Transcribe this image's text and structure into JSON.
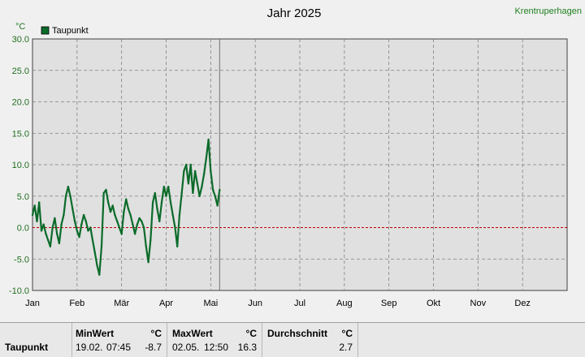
{
  "title": "Jahr 2025",
  "station": "Krentruperhagen",
  "colors": {
    "series": "#0b6b2a",
    "zero_line": "#c00000",
    "grid": "#808080",
    "station": "#208020"
  },
  "chart_data": {
    "type": "line",
    "title": "Jahr 2025",
    "ylabel": "°C",
    "ylim": [
      -10,
      30
    ],
    "yticks": [
      "30.0",
      "25.0",
      "20.0",
      "15.0",
      "10.0",
      "5.0",
      "0.0",
      "-5.0",
      "-10.0"
    ],
    "xlim": [
      1,
      13
    ],
    "xticks": [
      "Jan",
      "Feb",
      "Mär",
      "Apr",
      "Mai",
      "Jun",
      "Jul",
      "Aug",
      "Sep",
      "Okt",
      "Nov",
      "Dez"
    ],
    "grid": true,
    "legend": "top-left",
    "current_marker_x": 5.2,
    "series": [
      {
        "name": "Taupunkt",
        "x": [
          1.0,
          1.05,
          1.1,
          1.15,
          1.2,
          1.25,
          1.3,
          1.35,
          1.4,
          1.45,
          1.5,
          1.55,
          1.6,
          1.65,
          1.7,
          1.75,
          1.8,
          1.85,
          1.9,
          1.95,
          2.0,
          2.05,
          2.1,
          2.15,
          2.2,
          2.25,
          2.3,
          2.35,
          2.4,
          2.45,
          2.5,
          2.55,
          2.6,
          2.65,
          2.7,
          2.75,
          2.8,
          2.85,
          2.9,
          2.95,
          3.0,
          3.05,
          3.1,
          3.15,
          3.2,
          3.25,
          3.3,
          3.35,
          3.4,
          3.45,
          3.5,
          3.55,
          3.6,
          3.65,
          3.7,
          3.75,
          3.8,
          3.85,
          3.9,
          3.95,
          4.0,
          4.05,
          4.1,
          4.15,
          4.2,
          4.25,
          4.3,
          4.35,
          4.4,
          4.45,
          4.5,
          4.55,
          4.6,
          4.65,
          4.7,
          4.75,
          4.8,
          4.85,
          4.9,
          4.95,
          5.0,
          5.05,
          5.1,
          5.15,
          5.2
        ],
        "values": [
          2.0,
          3.5,
          1.0,
          4.0,
          -0.5,
          0.5,
          -1.0,
          -2.0,
          -3.0,
          0.0,
          1.5,
          -1.0,
          -2.5,
          0.5,
          2.0,
          5.0,
          6.5,
          5.0,
          3.0,
          1.0,
          -0.5,
          -1.5,
          0.5,
          2.0,
          1.0,
          -0.5,
          0.0,
          -2.0,
          -4.0,
          -6.0,
          -7.5,
          -3.0,
          5.5,
          6.0,
          4.0,
          2.5,
          3.5,
          2.0,
          1.0,
          0.0,
          -1.0,
          2.5,
          4.5,
          3.0,
          2.0,
          0.5,
          -1.0,
          0.5,
          1.5,
          1.0,
          0.0,
          -3.0,
          -5.5,
          -2.0,
          4.0,
          5.5,
          3.0,
          1.0,
          4.0,
          6.5,
          5.0,
          6.5,
          4.0,
          2.0,
          0.0,
          -3.0,
          2.0,
          5.5,
          9.0,
          10.0,
          7.0,
          10.0,
          5.5,
          9.0,
          7.0,
          5.0,
          6.5,
          8.5,
          11.0,
          14.0,
          9.0,
          6.0,
          5.0,
          3.5,
          6.0
        ]
      }
    ]
  },
  "stats": {
    "row_label": "Taupunkt",
    "min": {
      "header": "MinWert",
      "unit": "°C",
      "date": "19.02.",
      "time": "07:45",
      "value": "-8.7"
    },
    "max": {
      "header": "MaxWert",
      "unit": "°C",
      "date": "02.05.",
      "time": "12:50",
      "value": "16.3"
    },
    "avg": {
      "header": "Durchschnitt",
      "unit": "°C",
      "value": "2.7"
    }
  }
}
